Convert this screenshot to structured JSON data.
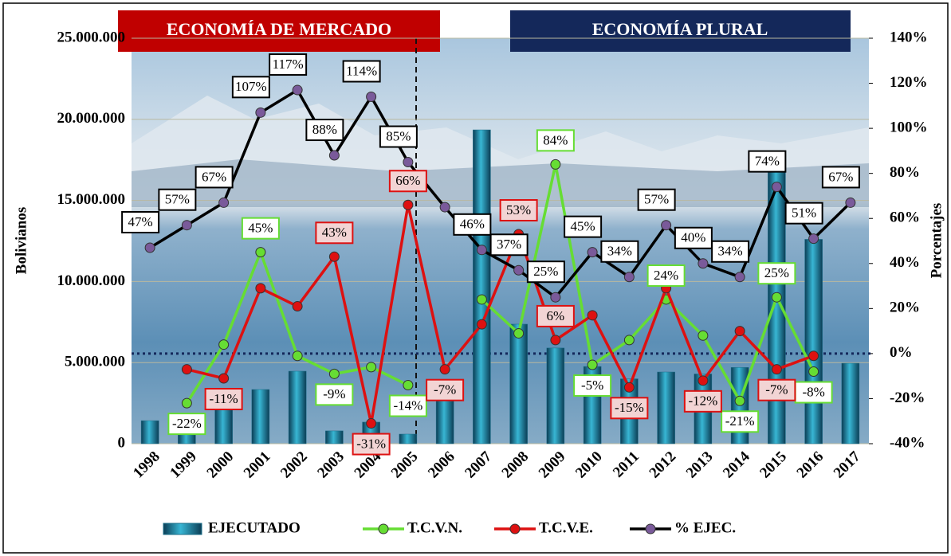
{
  "chart_data": {
    "type": "bar",
    "annotations": [
      "ECONOMÍA DE MERCADO",
      "ECONOMÍA PLURAL"
    ],
    "y_label": "Bolivianos",
    "y2_label": "Porcentajes",
    "categories": [
      "1998",
      "1999",
      "2000",
      "2001",
      "2002",
      "2003",
      "2004",
      "2005",
      "2006",
      "2007",
      "2008",
      "2009",
      "2010",
      "2011",
      "2012",
      "2013",
      "2014",
      "2015",
      "2016",
      "2017"
    ],
    "ylim": [
      0,
      25000000
    ],
    "yticks": [
      0,
      {
        "value": 5000000,
        "label": "5.000.000"
      },
      {
        "value": 10000000,
        "label": "10.000.000"
      },
      {
        "value": 15000000,
        "label": "15.000.000"
      },
      {
        "value": 20000000,
        "label": "20.000.000"
      },
      {
        "value": 25000000,
        "label": "25.000.000"
      }
    ],
    "y2lim": [
      -40,
      140
    ],
    "y2ticks": [
      {
        "value": -40,
        "label": "-40%"
      },
      {
        "value": -20,
        "label": "-20%"
      },
      {
        "value": 0,
        "label": "0%"
      },
      {
        "value": 20,
        "label": "20%"
      },
      {
        "value": 40,
        "label": "40%"
      },
      {
        "value": 60,
        "label": "60%"
      },
      {
        "value": 80,
        "label": "80%"
      },
      {
        "value": 100,
        "label": "100%"
      },
      {
        "value": 120,
        "label": "120%"
      },
      {
        "value": 140,
        "label": "140%"
      }
    ],
    "series": [
      {
        "name": "EJECUTADO",
        "type": "bar",
        "color": "#1b6f8a",
        "values": [
          1420000,
          1700000,
          2260000,
          3340000,
          4470000,
          790000,
          1330000,
          590000,
          3630000,
          19350000,
          7370000,
          5900000,
          4760000,
          4000000,
          4420000,
          4300000,
          4700000,
          17040000,
          12600000,
          4960000
        ]
      },
      {
        "name": "T.C.V.N.",
        "type": "line",
        "axis": "y2",
        "color": "#66dd33",
        "values": [
          null,
          -22,
          4,
          45,
          -1,
          -9,
          -6,
          -14,
          null,
          24,
          9,
          84,
          -5,
          6,
          24,
          8,
          -21,
          25,
          -8,
          null
        ],
        "value_labels": [
          null,
          "-22%",
          null,
          "45%",
          null,
          "-9%",
          null,
          "-14%",
          null,
          null,
          null,
          "84%",
          "-5%",
          null,
          "24%",
          null,
          "-21%",
          "25%",
          "-8%",
          null
        ]
      },
      {
        "name": "T.C.V.E.",
        "type": "line",
        "axis": "y2",
        "color": "#dd1111",
        "values": [
          null,
          -7,
          -11,
          29,
          21,
          43,
          -31,
          66,
          -7,
          13,
          53,
          6,
          17,
          -15,
          29,
          -12,
          10,
          -7,
          -1,
          null
        ],
        "value_labels": [
          null,
          null,
          "-11%",
          null,
          null,
          "43%",
          "-31%",
          "66%",
          "-7%",
          null,
          "53%",
          "6%",
          null,
          "-15%",
          null,
          "-12%",
          null,
          "-7%",
          null,
          null
        ]
      },
      {
        "name": "% EJEC.",
        "type": "line",
        "axis": "y2",
        "color": "#000000",
        "values": [
          47,
          57,
          67,
          107,
          117,
          88,
          114,
          85,
          65,
          46,
          37,
          25,
          45,
          34,
          57,
          40,
          34,
          74,
          51,
          67
        ],
        "value_labels": [
          "47%",
          "57%",
          "67%",
          "107%",
          "117%",
          "88%",
          "114%",
          "85%",
          null,
          "46%",
          "37%",
          "25%",
          "45%",
          "34%",
          "57%",
          "40%",
          "34%",
          "74%",
          "51%",
          "67%"
        ]
      }
    ]
  }
}
